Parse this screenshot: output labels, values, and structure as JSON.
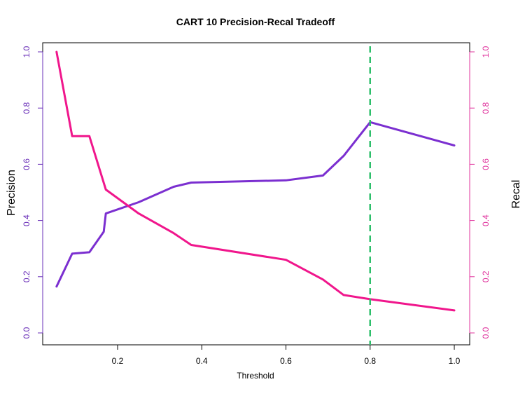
{
  "chart_data": {
    "type": "line",
    "title": "CART 10 Precision-Recal Tradeoff",
    "xlabel": "Threshold",
    "ylabel_left": "Precision",
    "ylabel_right": "Recal",
    "xlim": [
      0.05,
      1.0
    ],
    "ylim": [
      0,
      1
    ],
    "x_ticks": [
      "0.2",
      "0.4",
      "0.6",
      "0.8",
      "1.0"
    ],
    "y_ticks": [
      "0.0",
      "0.2",
      "0.4",
      "0.6",
      "0.8",
      "1.0"
    ],
    "grid": false,
    "threshold_line": 0.8,
    "series": [
      {
        "axis": "left",
        "color": "#7B2FD0",
        "x": [
          0.055,
          0.092,
          0.133,
          0.167,
          0.172,
          0.25,
          0.333,
          0.375,
          0.6,
          0.688,
          0.737,
          0.8,
          1.0
        ],
        "values": [
          0.165,
          0.282,
          0.287,
          0.36,
          0.425,
          0.465,
          0.52,
          0.535,
          0.543,
          0.56,
          0.63,
          0.75,
          0.667
        ]
      },
      {
        "axis": "right",
        "color": "#F0168C",
        "x": [
          0.055,
          0.092,
          0.133,
          0.172,
          0.25,
          0.333,
          0.375,
          0.6,
          0.688,
          0.737,
          0.8,
          1.0
        ],
        "values": [
          1.0,
          0.7,
          0.7,
          0.51,
          0.425,
          0.355,
          0.313,
          0.26,
          0.19,
          0.135,
          0.12,
          0.08
        ]
      }
    ],
    "colors": {
      "precision_axis": "#6A2FB8",
      "recall_axis": "#E0359E",
      "threshold_line": "#2EBF6B"
    }
  }
}
